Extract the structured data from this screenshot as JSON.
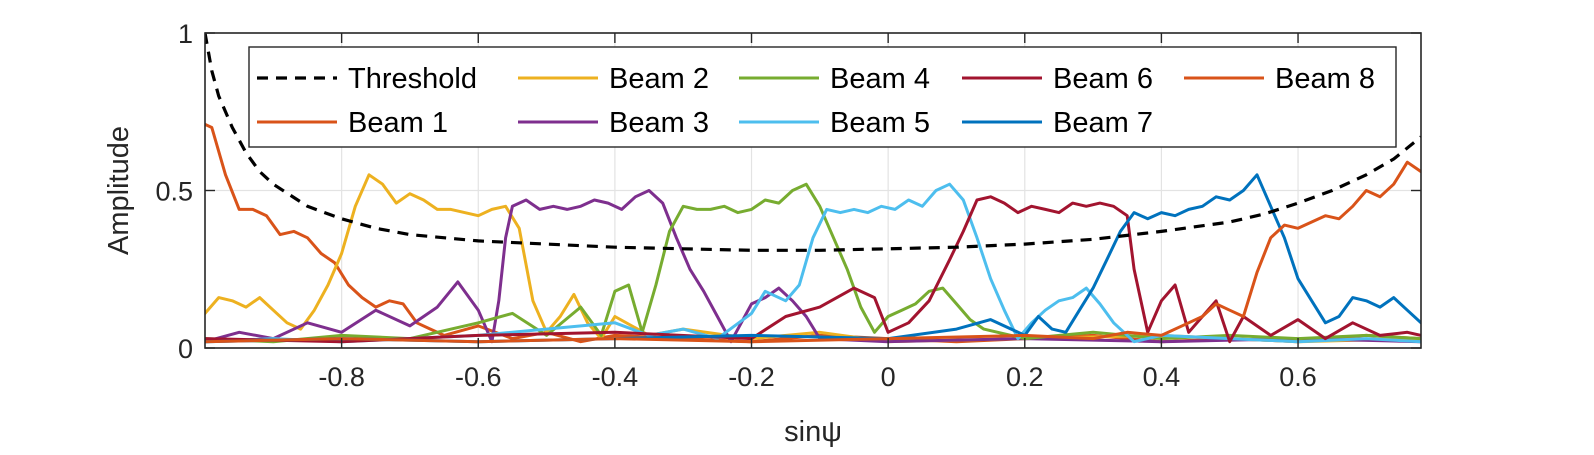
{
  "chart_data": {
    "type": "line",
    "title": "",
    "xlabel": "sinψ",
    "ylabel": "Amplitude",
    "xlim": [
      -1.0,
      0.78
    ],
    "ylim": [
      0,
      1
    ],
    "xticks": [
      -0.8,
      -0.6,
      -0.4,
      -0.2,
      0,
      0.2,
      0.4,
      0.6
    ],
    "xtick_labels": [
      "-0.8",
      "-0.6",
      "-0.4",
      "-0.2",
      "0",
      "0.2",
      "0.4",
      "0.6"
    ],
    "yticks": [
      0,
      0.5,
      1
    ],
    "ytick_labels": [
      "0",
      "0.5",
      "1"
    ],
    "grid": true,
    "legend_position": "top",
    "series": [
      {
        "name": "Threshold",
        "color": "#000000",
        "dashed": true,
        "x": [
          -1.0,
          -0.99,
          -0.98,
          -0.96,
          -0.94,
          -0.92,
          -0.9,
          -0.85,
          -0.8,
          -0.75,
          -0.7,
          -0.6,
          -0.5,
          -0.4,
          -0.3,
          -0.2,
          -0.1,
          0.0,
          0.1,
          0.2,
          0.3,
          0.4,
          0.5,
          0.55,
          0.6,
          0.65,
          0.7,
          0.74,
          0.78
        ],
        "y": [
          1.0,
          0.88,
          0.8,
          0.7,
          0.62,
          0.56,
          0.52,
          0.45,
          0.41,
          0.38,
          0.36,
          0.34,
          0.33,
          0.32,
          0.315,
          0.31,
          0.31,
          0.315,
          0.32,
          0.33,
          0.345,
          0.37,
          0.4,
          0.425,
          0.46,
          0.5,
          0.55,
          0.6,
          0.67
        ]
      },
      {
        "name": "Beam 1",
        "color": "#d95319",
        "x": [
          -1.0,
          -0.99,
          -0.97,
          -0.95,
          -0.93,
          -0.91,
          -0.89,
          -0.87,
          -0.85,
          -0.83,
          -0.81,
          -0.79,
          -0.77,
          -0.75,
          -0.73,
          -0.71,
          -0.69,
          -0.67,
          -0.65,
          -0.6,
          -0.55,
          -0.5,
          -0.45,
          -0.4,
          -0.3,
          -0.2,
          -0.1,
          0.0,
          0.1,
          0.2,
          0.3,
          0.4,
          0.5,
          0.6,
          0.7,
          0.78
        ],
        "y": [
          0.71,
          0.7,
          0.55,
          0.44,
          0.44,
          0.42,
          0.36,
          0.37,
          0.35,
          0.3,
          0.27,
          0.2,
          0.16,
          0.13,
          0.15,
          0.14,
          0.08,
          0.06,
          0.04,
          0.07,
          0.03,
          0.05,
          0.02,
          0.04,
          0.03,
          0.02,
          0.04,
          0.03,
          0.02,
          0.03,
          0.04,
          0.02,
          0.03,
          0.02,
          0.04,
          0.03
        ]
      },
      {
        "name": "Beam 2",
        "color": "#edb120",
        "x": [
          -1.0,
          -0.98,
          -0.96,
          -0.94,
          -0.92,
          -0.9,
          -0.88,
          -0.86,
          -0.84,
          -0.82,
          -0.8,
          -0.78,
          -0.76,
          -0.74,
          -0.72,
          -0.7,
          -0.68,
          -0.66,
          -0.64,
          -0.62,
          -0.6,
          -0.58,
          -0.56,
          -0.54,
          -0.52,
          -0.5,
          -0.48,
          -0.46,
          -0.44,
          -0.42,
          -0.4,
          -0.35,
          -0.3,
          -0.2,
          -0.1,
          0.0,
          0.2,
          0.4,
          0.6,
          0.78
        ],
        "y": [
          0.11,
          0.16,
          0.15,
          0.13,
          0.16,
          0.12,
          0.08,
          0.06,
          0.12,
          0.2,
          0.3,
          0.45,
          0.55,
          0.52,
          0.46,
          0.49,
          0.47,
          0.44,
          0.44,
          0.43,
          0.42,
          0.44,
          0.45,
          0.38,
          0.15,
          0.05,
          0.1,
          0.17,
          0.08,
          0.03,
          0.1,
          0.04,
          0.06,
          0.03,
          0.05,
          0.02,
          0.03,
          0.04,
          0.02,
          0.03
        ]
      },
      {
        "name": "Beam 3",
        "color": "#7e2f8e",
        "x": [
          -1.0,
          -0.95,
          -0.9,
          -0.85,
          -0.8,
          -0.75,
          -0.7,
          -0.66,
          -0.63,
          -0.6,
          -0.58,
          -0.57,
          -0.56,
          -0.55,
          -0.53,
          -0.51,
          -0.49,
          -0.47,
          -0.45,
          -0.43,
          -0.41,
          -0.39,
          -0.37,
          -0.35,
          -0.33,
          -0.31,
          -0.29,
          -0.27,
          -0.25,
          -0.23,
          -0.21,
          -0.2,
          -0.18,
          -0.16,
          -0.14,
          -0.12,
          -0.1,
          0.0,
          0.2,
          0.4,
          0.6,
          0.78
        ],
        "y": [
          0.02,
          0.05,
          0.03,
          0.08,
          0.05,
          0.12,
          0.07,
          0.13,
          0.21,
          0.12,
          0.02,
          0.15,
          0.35,
          0.45,
          0.47,
          0.44,
          0.45,
          0.44,
          0.45,
          0.47,
          0.46,
          0.44,
          0.48,
          0.5,
          0.46,
          0.35,
          0.25,
          0.18,
          0.1,
          0.02,
          0.1,
          0.14,
          0.16,
          0.19,
          0.15,
          0.1,
          0.03,
          0.02,
          0.03,
          0.02,
          0.03,
          0.02
        ]
      },
      {
        "name": "Beam 4",
        "color": "#77ac30",
        "x": [
          -1.0,
          -0.9,
          -0.8,
          -0.7,
          -0.6,
          -0.55,
          -0.5,
          -0.45,
          -0.42,
          -0.4,
          -0.38,
          -0.36,
          -0.34,
          -0.32,
          -0.3,
          -0.28,
          -0.26,
          -0.24,
          -0.22,
          -0.2,
          -0.18,
          -0.16,
          -0.14,
          -0.12,
          -0.1,
          -0.08,
          -0.06,
          -0.04,
          -0.02,
          0.0,
          0.02,
          0.04,
          0.06,
          0.08,
          0.1,
          0.12,
          0.14,
          0.2,
          0.3,
          0.4,
          0.5,
          0.6,
          0.7,
          0.78
        ],
        "y": [
          0.03,
          0.02,
          0.04,
          0.03,
          0.08,
          0.11,
          0.04,
          0.13,
          0.04,
          0.18,
          0.2,
          0.05,
          0.2,
          0.37,
          0.45,
          0.44,
          0.44,
          0.45,
          0.43,
          0.44,
          0.47,
          0.46,
          0.5,
          0.52,
          0.45,
          0.35,
          0.25,
          0.13,
          0.05,
          0.1,
          0.12,
          0.14,
          0.18,
          0.19,
          0.14,
          0.09,
          0.06,
          0.03,
          0.05,
          0.03,
          0.04,
          0.03,
          0.04,
          0.03
        ]
      },
      {
        "name": "Beam 5",
        "color": "#4dbeee",
        "x": [
          -1.0,
          -0.9,
          -0.8,
          -0.6,
          -0.4,
          -0.35,
          -0.3,
          -0.25,
          -0.2,
          -0.18,
          -0.15,
          -0.13,
          -0.11,
          -0.09,
          -0.07,
          -0.05,
          -0.03,
          -0.01,
          0.01,
          0.03,
          0.05,
          0.07,
          0.09,
          0.11,
          0.13,
          0.15,
          0.17,
          0.19,
          0.21,
          0.23,
          0.25,
          0.27,
          0.29,
          0.31,
          0.33,
          0.36,
          0.4,
          0.5,
          0.6,
          0.7,
          0.78
        ],
        "y": [
          0.02,
          0.03,
          0.02,
          0.04,
          0.08,
          0.04,
          0.06,
          0.03,
          0.11,
          0.18,
          0.15,
          0.2,
          0.35,
          0.44,
          0.43,
          0.44,
          0.43,
          0.45,
          0.44,
          0.47,
          0.45,
          0.5,
          0.52,
          0.47,
          0.35,
          0.22,
          0.12,
          0.03,
          0.08,
          0.12,
          0.15,
          0.16,
          0.19,
          0.14,
          0.08,
          0.02,
          0.04,
          0.03,
          0.02,
          0.03,
          0.02
        ]
      },
      {
        "name": "Beam 6",
        "color": "#a2142f",
        "x": [
          -1.0,
          -0.8,
          -0.6,
          -0.4,
          -0.2,
          -0.15,
          -0.1,
          -0.05,
          -0.02,
          0.0,
          0.03,
          0.06,
          0.09,
          0.11,
          0.13,
          0.15,
          0.17,
          0.19,
          0.21,
          0.23,
          0.25,
          0.27,
          0.29,
          0.31,
          0.33,
          0.35,
          0.36,
          0.38,
          0.4,
          0.42,
          0.44,
          0.46,
          0.48,
          0.5,
          0.52,
          0.56,
          0.6,
          0.64,
          0.68,
          0.72,
          0.76,
          0.78
        ],
        "y": [
          0.03,
          0.02,
          0.04,
          0.05,
          0.03,
          0.1,
          0.13,
          0.19,
          0.16,
          0.05,
          0.08,
          0.15,
          0.28,
          0.37,
          0.47,
          0.48,
          0.46,
          0.43,
          0.45,
          0.44,
          0.43,
          0.46,
          0.45,
          0.46,
          0.45,
          0.42,
          0.25,
          0.05,
          0.15,
          0.2,
          0.05,
          0.1,
          0.15,
          0.02,
          0.1,
          0.04,
          0.09,
          0.03,
          0.08,
          0.04,
          0.05,
          0.04
        ]
      },
      {
        "name": "Beam 7",
        "color": "#0072bd",
        "x": [
          -1.0,
          -0.8,
          -0.6,
          -0.4,
          -0.2,
          0.0,
          0.1,
          0.15,
          0.2,
          0.22,
          0.24,
          0.26,
          0.28,
          0.3,
          0.32,
          0.34,
          0.36,
          0.38,
          0.4,
          0.42,
          0.44,
          0.46,
          0.48,
          0.5,
          0.52,
          0.54,
          0.56,
          0.58,
          0.6,
          0.62,
          0.64,
          0.66,
          0.68,
          0.7,
          0.72,
          0.74,
          0.76,
          0.78
        ],
        "y": [
          0.02,
          0.03,
          0.02,
          0.03,
          0.04,
          0.03,
          0.06,
          0.09,
          0.04,
          0.1,
          0.06,
          0.05,
          0.12,
          0.19,
          0.28,
          0.37,
          0.43,
          0.41,
          0.43,
          0.42,
          0.44,
          0.45,
          0.48,
          0.47,
          0.5,
          0.55,
          0.45,
          0.35,
          0.22,
          0.15,
          0.08,
          0.1,
          0.16,
          0.15,
          0.13,
          0.16,
          0.12,
          0.08
        ]
      },
      {
        "name": "Beam 8",
        "color": "#d95319",
        "x": [
          -1.0,
          -0.8,
          -0.6,
          -0.4,
          -0.2,
          0.0,
          0.2,
          0.3,
          0.35,
          0.4,
          0.44,
          0.46,
          0.48,
          0.5,
          0.52,
          0.54,
          0.56,
          0.58,
          0.6,
          0.62,
          0.64,
          0.66,
          0.68,
          0.7,
          0.72,
          0.74,
          0.76,
          0.78
        ],
        "y": [
          0.02,
          0.03,
          0.02,
          0.03,
          0.02,
          0.03,
          0.04,
          0.03,
          0.05,
          0.04,
          0.08,
          0.1,
          0.14,
          0.12,
          0.1,
          0.24,
          0.35,
          0.39,
          0.38,
          0.4,
          0.42,
          0.41,
          0.45,
          0.5,
          0.48,
          0.52,
          0.59,
          0.56
        ]
      }
    ]
  }
}
